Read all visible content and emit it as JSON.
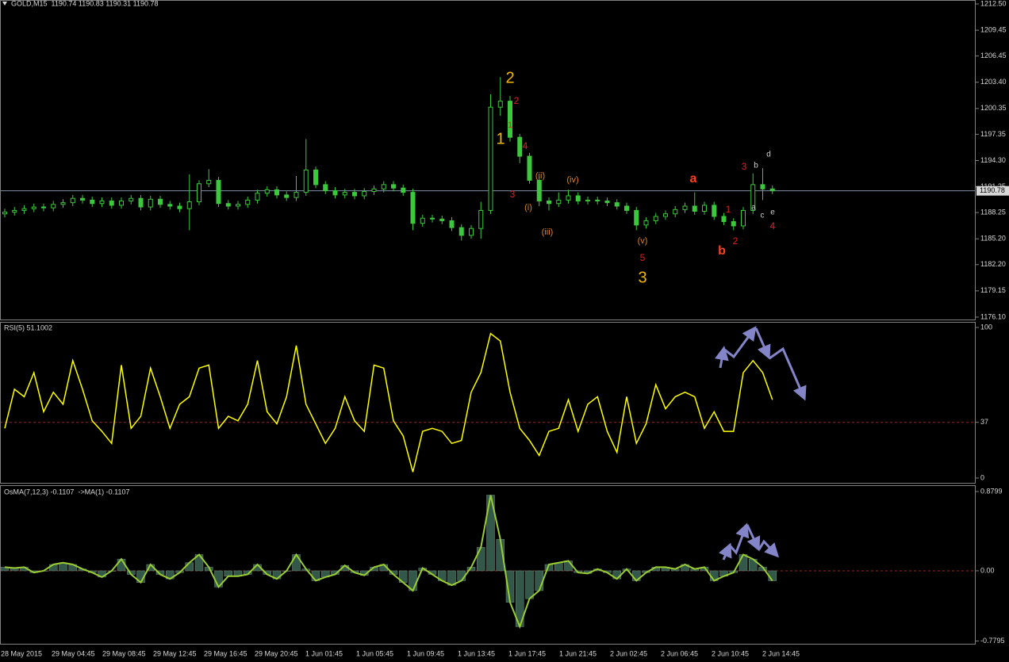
{
  "chart_data": [
    {
      "type": "candlestick",
      "title": "GOLD,M15  1190.74 1190.83 1190.31 1190.78",
      "color": "#3cc83c",
      "grid": false,
      "x_labels": [
        "28 May 2015",
        "29 May 04:45",
        "29 May 08:45",
        "29 May 12:45",
        "29 May 16:45",
        "29 May 20:45",
        "1 Jun 01:45",
        "1 Jun 05:45",
        "1 Jun 09:45",
        "1 Jun 13:45",
        "1 Jun 17:45",
        "1 Jun 21:45",
        "2 Jun 02:45",
        "2 Jun 06:45",
        "2 Jun 10:45",
        "2 Jun 14:45"
      ],
      "open": [
        1188.1,
        1188.3,
        1188.5,
        1188.7,
        1188.9,
        1188.8,
        1189.2,
        1189.4,
        1189.9,
        1189.7,
        1189.3,
        1189.6,
        1189.1,
        1189.6,
        1189.9,
        1188.9,
        1189.8,
        1189.2,
        1189.0,
        1188.7,
        1189.5,
        1191.6,
        1192.0,
        1189.3,
        1189.0,
        1189.2,
        1189.7,
        1190.5,
        1190.9,
        1190.3,
        1190.0,
        1190.6,
        1193.2,
        1191.5,
        1190.8,
        1190.3,
        1190.6,
        1190.2,
        1190.7,
        1191.0,
        1191.5,
        1191.1,
        1190.6,
        1187.0,
        1187.6,
        1187.5,
        1187.3,
        1186.5,
        1185.6,
        1186.4,
        1188.5,
        1200.5,
        1201.2,
        1197.0,
        1194.8,
        1192.0,
        1189.6,
        1189.3,
        1189.7,
        1190.2,
        1189.6,
        1189.7,
        1189.6,
        1189.4,
        1189.0,
        1188.5,
        1186.8,
        1187.3,
        1187.8,
        1188.1,
        1188.6,
        1189.0,
        1188.4,
        1189.1,
        1187.8,
        1187.2,
        1186.7,
        1188.5,
        1191.5,
        1191.0
      ],
      "high": [
        1188.7,
        1188.9,
        1189.1,
        1189.3,
        1189.3,
        1189.6,
        1189.8,
        1190.3,
        1190.3,
        1190.1,
        1190.0,
        1190.0,
        1190.0,
        1190.3,
        1190.3,
        1190.2,
        1190.2,
        1189.6,
        1189.4,
        1192.7,
        1192.0,
        1193.3,
        1192.4,
        1189.7,
        1189.6,
        1190.1,
        1190.9,
        1191.3,
        1191.3,
        1190.7,
        1192.5,
        1196.8,
        1193.6,
        1191.9,
        1191.2,
        1191.0,
        1191.0,
        1191.1,
        1191.4,
        1191.9,
        1191.9,
        1191.5,
        1191.0,
        1188.0,
        1188.0,
        1187.9,
        1187.7,
        1186.9,
        1186.8,
        1189.5,
        1202.0,
        1204.0,
        1201.8,
        1197.4,
        1195.2,
        1192.4,
        1190.0,
        1190.6,
        1190.9,
        1190.6,
        1190.1,
        1190.1,
        1190.0,
        1189.8,
        1189.4,
        1188.9,
        1187.7,
        1188.2,
        1188.5,
        1189.0,
        1189.4,
        1190.6,
        1189.5,
        1189.5,
        1188.2,
        1187.6,
        1188.9,
        1192.8,
        1193.4,
        1191.4
      ],
      "low": [
        1187.7,
        1187.9,
        1188.1,
        1188.3,
        1188.4,
        1188.4,
        1188.8,
        1189.0,
        1189.3,
        1188.9,
        1188.9,
        1188.7,
        1188.7,
        1189.2,
        1188.5,
        1188.5,
        1188.8,
        1188.6,
        1188.3,
        1186.2,
        1189.1,
        1191.2,
        1188.9,
        1188.6,
        1188.6,
        1188.8,
        1189.3,
        1190.1,
        1189.9,
        1189.6,
        1189.6,
        1190.2,
        1191.1,
        1190.4,
        1189.9,
        1189.9,
        1189.8,
        1189.8,
        1190.3,
        1190.6,
        1190.7,
        1190.2,
        1186.2,
        1186.6,
        1187.1,
        1186.9,
        1186.1,
        1185.0,
        1185.2,
        1185.2,
        1188.1,
        1199.5,
        1196.5,
        1194.0,
        1191.6,
        1189.0,
        1188.5,
        1188.9,
        1189.3,
        1189.2,
        1189.2,
        1189.2,
        1189.0,
        1188.6,
        1188.1,
        1186.2,
        1186.4,
        1186.9,
        1187.4,
        1187.7,
        1188.2,
        1188.0,
        1188.0,
        1187.4,
        1186.8,
        1186.2,
        1186.3,
        1188.1,
        1189.7,
        1190.4
      ],
      "close": [
        1188.3,
        1188.5,
        1188.7,
        1188.9,
        1188.8,
        1189.2,
        1189.4,
        1189.9,
        1189.7,
        1189.3,
        1189.6,
        1189.1,
        1189.6,
        1189.9,
        1188.9,
        1189.8,
        1189.2,
        1189.0,
        1188.7,
        1189.5,
        1191.6,
        1192.0,
        1189.3,
        1189.0,
        1189.2,
        1189.7,
        1190.5,
        1190.9,
        1190.3,
        1190.0,
        1190.6,
        1193.2,
        1191.5,
        1190.8,
        1190.3,
        1190.6,
        1190.2,
        1190.7,
        1191.0,
        1191.5,
        1191.1,
        1190.6,
        1187.0,
        1187.6,
        1187.5,
        1187.3,
        1186.5,
        1185.6,
        1186.4,
        1188.5,
        1200.5,
        1201.2,
        1197.0,
        1194.8,
        1192.0,
        1189.6,
        1189.3,
        1189.7,
        1190.2,
        1189.6,
        1189.7,
        1189.6,
        1189.4,
        1189.0,
        1188.5,
        1186.8,
        1187.3,
        1187.8,
        1188.1,
        1188.6,
        1189.0,
        1188.4,
        1189.1,
        1187.8,
        1187.2,
        1186.7,
        1188.5,
        1191.5,
        1191.0,
        1190.78
      ],
      "current_price": 1190.78,
      "current_price_color": "#8090a8",
      "ylim": [
        1175.82,
        1212.96
      ],
      "yticks": [
        {
          "value": 1212.5,
          "label": "1212.50"
        },
        1209.45,
        1206.45,
        {
          "value": 1203.4,
          "label": "1203.40"
        },
        1200.35,
        1197.35,
        {
          "value": 1194.3,
          "label": "1194.30"
        },
        1191.25,
        1188.25,
        {
          "value": 1185.2,
          "label": "1185.20"
        },
        {
          "value": 1182.2,
          "label": "1182.20"
        },
        1179.15,
        {
          "value": 1176.1,
          "label": "1176.10"
        }
      ],
      "annotations": [
        {
          "text": "2",
          "color": "#f5b800"
        },
        {
          "text": "1",
          "color": "#f5b800"
        },
        {
          "text": "2",
          "color": "#e02020"
        },
        {
          "text": "1",
          "color": "#e02020"
        },
        {
          "text": "4",
          "color": "#e02020"
        },
        {
          "text": "3",
          "color": "#e02020"
        },
        {
          "text": "(ii)",
          "color": "#e08020"
        },
        {
          "text": "(iv)",
          "color": "#e08020"
        },
        {
          "text": "(i)",
          "color": "#e08020"
        },
        {
          "text": "(iii)",
          "color": "#e08020"
        },
        {
          "text": "(v)",
          "color": "#e08020"
        },
        {
          "text": "5",
          "color": "#e02020"
        },
        {
          "text": "3",
          "color": "#f5b800"
        },
        {
          "text": "a",
          "color": "#ff4020"
        },
        {
          "text": "b",
          "color": "#ff4020"
        },
        {
          "text": "1",
          "color": "#e02020"
        },
        {
          "text": "2",
          "color": "#e02020"
        },
        {
          "text": "3",
          "color": "#e02020"
        },
        {
          "text": "b",
          "color": "#d0d0d0"
        },
        {
          "text": "d",
          "color": "#d0d0d0"
        },
        {
          "text": "a",
          "color": "#d0d0d0"
        },
        {
          "text": "c",
          "color": "#d0d0d0"
        },
        {
          "text": "e",
          "color": "#d0d0d0"
        },
        {
          "text": "4",
          "color": "#e02020"
        }
      ]
    },
    {
      "type": "line",
      "title": "RSI(5) 51.1002",
      "color": "#ffff00",
      "level": 37,
      "level_color": "#8b2a2a",
      "values": [
        33,
        59,
        54,
        70,
        44,
        57,
        49,
        78,
        59,
        38,
        31,
        23,
        75,
        33,
        41,
        73,
        54,
        33,
        49,
        54,
        73,
        75,
        33,
        41,
        38,
        49,
        78,
        44,
        36,
        54,
        88,
        49,
        36,
        23,
        33,
        54,
        38,
        31,
        75,
        73,
        38,
        28,
        4,
        31,
        33,
        31,
        23,
        25,
        57,
        70,
        96,
        91,
        57,
        33,
        25,
        15,
        31,
        33,
        52,
        31,
        49,
        54,
        31,
        17,
        54,
        23,
        36,
        62,
        46,
        54,
        57,
        54,
        33,
        44,
        31,
        31,
        70,
        78,
        70,
        52
      ],
      "ylim": [
        -3.7,
        103.7
      ],
      "yticks": [
        100,
        37,
        0
      ]
    },
    {
      "type": "histogram",
      "title": "OsMA(7,12,3) -0.1107  ->MA(1) -0.1107",
      "color": "#33584a",
      "line_color": "#9acd32",
      "level": 0,
      "level_color": "#8b2a2a",
      "values": [
        0.04,
        0.03,
        0.04,
        -0.02,
        0,
        0.07,
        0.09,
        0.07,
        0.02,
        -0.02,
        -0.07,
        0,
        0.13,
        -0.04,
        -0.13,
        0.07,
        -0.04,
        -0.09,
        -0.02,
        0.09,
        0.18,
        0.04,
        -0.18,
        -0.06,
        -0.06,
        -0.04,
        0.07,
        -0.04,
        -0.09,
        0,
        0.18,
        0.02,
        -0.11,
        -0.07,
        -0.04,
        0.06,
        -0.02,
        -0.05,
        0.04,
        0.07,
        -0.04,
        -0.13,
        -0.22,
        0.03,
        -0.04,
        -0.11,
        -0.16,
        -0.11,
        0.04,
        0.26,
        0.84,
        0.35,
        -0.35,
        -0.62,
        -0.31,
        -0.22,
        0.07,
        0.09,
        0.11,
        -0.02,
        -0.03,
        0.02,
        -0.02,
        -0.09,
        0.02,
        -0.11,
        -0.02,
        0.04,
        0.04,
        0.02,
        0.07,
        0.02,
        0.04,
        -0.11,
        -0.06,
        -0.02,
        0.18,
        0.13,
        0.04,
        -0.1107
      ],
      "ylim": [
        -0.81,
        0.95
      ],
      "yticks": [
        0.8799,
        {
          "value": 0,
          "label": "0.00"
        },
        -0.7795
      ]
    }
  ]
}
